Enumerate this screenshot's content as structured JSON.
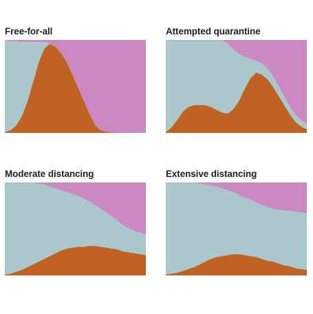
{
  "colors": {
    "infected": "#bf6323",
    "healthy": "#aac8cc",
    "recovered": "#cc88c0"
  },
  "chart_data": [
    {
      "type": "area",
      "title": "Free-for-all",
      "ylim": [
        0,
        1
      ],
      "x": [
        0,
        4,
        8,
        12,
        16,
        20,
        24,
        28,
        32,
        36,
        40,
        44,
        48,
        52,
        56,
        60,
        64,
        68,
        72,
        76,
        80,
        84,
        88,
        92,
        96,
        100
      ],
      "series": [
        {
          "values": [
            0.01,
            0.03,
            0.08,
            0.18,
            0.34,
            0.55,
            0.76,
            0.91,
            0.96,
            0.93,
            0.86,
            0.76,
            0.63,
            0.49,
            0.35,
            0.21,
            0.09,
            0.03,
            0.015,
            0.01,
            0.005,
            0.004,
            0.003,
            0.002,
            0.002,
            0.001
          ]
        },
        {
          "values": [
            0.99,
            0.96,
            0.91,
            0.8,
            0.64,
            0.43,
            0.22,
            0.07,
            0.01,
            0.003,
            0.002,
            0.002,
            0.001,
            0.001,
            0.001,
            0.001,
            0.001,
            0.001,
            0.001,
            0.001,
            0.001,
            0.001,
            0.001,
            0.001,
            0.001,
            0.001
          ]
        },
        {
          "values": [
            0.0,
            0.01,
            0.01,
            0.02,
            0.02,
            0.02,
            0.02,
            0.02,
            0.03,
            0.067,
            0.138,
            0.238,
            0.369,
            0.509,
            0.649,
            0.789,
            0.909,
            0.969,
            0.984,
            0.989,
            0.994,
            0.995,
            0.996,
            0.997,
            0.997,
            0.998
          ]
        }
      ]
    },
    {
      "type": "area",
      "title": "Attempted quarantine",
      "ylim": [
        0,
        1
      ],
      "x": [
        0,
        4,
        8,
        12,
        16,
        20,
        24,
        28,
        32,
        36,
        40,
        44,
        48,
        52,
        56,
        60,
        64,
        68,
        72,
        76,
        80,
        84,
        88,
        92,
        96,
        100
      ],
      "series": [
        {
          "values": [
            0.01,
            0.06,
            0.14,
            0.23,
            0.28,
            0.3,
            0.3,
            0.3,
            0.28,
            0.25,
            0.22,
            0.21,
            0.26,
            0.35,
            0.48,
            0.59,
            0.65,
            0.63,
            0.58,
            0.5,
            0.4,
            0.3,
            0.2,
            0.12,
            0.07,
            0.04
          ]
        },
        {
          "values": [
            0.99,
            0.94,
            0.86,
            0.77,
            0.72,
            0.7,
            0.7,
            0.7,
            0.72,
            0.75,
            0.78,
            0.75,
            0.64,
            0.5,
            0.34,
            0.21,
            0.13,
            0.12,
            0.12,
            0.12,
            0.11,
            0.1,
            0.09,
            0.08,
            0.07,
            0.06
          ]
        },
        {
          "values": [
            0.0,
            0.0,
            0.0,
            0.0,
            0.0,
            0.0,
            0.0,
            0.0,
            0.0,
            0.0,
            0.0,
            0.04,
            0.1,
            0.15,
            0.18,
            0.2,
            0.22,
            0.25,
            0.3,
            0.38,
            0.49,
            0.6,
            0.71,
            0.8,
            0.86,
            0.9
          ]
        }
      ]
    },
    {
      "type": "area",
      "title": "Moderate distancing",
      "ylim": [
        0,
        1
      ],
      "x": [
        0,
        4,
        8,
        12,
        16,
        20,
        24,
        28,
        32,
        36,
        40,
        44,
        48,
        52,
        56,
        60,
        64,
        68,
        72,
        76,
        80,
        84,
        88,
        92,
        96,
        100
      ],
      "series": [
        {
          "values": [
            0.01,
            0.02,
            0.04,
            0.06,
            0.09,
            0.12,
            0.15,
            0.18,
            0.21,
            0.24,
            0.27,
            0.29,
            0.3,
            0.31,
            0.31,
            0.32,
            0.32,
            0.31,
            0.3,
            0.29,
            0.28,
            0.26,
            0.25,
            0.24,
            0.23,
            0.22
          ]
        },
        {
          "values": [
            0.99,
            0.98,
            0.96,
            0.94,
            0.91,
            0.88,
            0.84,
            0.8,
            0.75,
            0.7,
            0.65,
            0.61,
            0.58,
            0.55,
            0.52,
            0.48,
            0.44,
            0.41,
            0.38,
            0.35,
            0.31,
            0.28,
            0.26,
            0.24,
            0.23,
            0.22
          ]
        },
        {
          "values": [
            0.0,
            0.0,
            0.0,
            0.0,
            0.0,
            0.0,
            0.01,
            0.02,
            0.04,
            0.06,
            0.08,
            0.1,
            0.12,
            0.14,
            0.17,
            0.2,
            0.24,
            0.28,
            0.32,
            0.36,
            0.41,
            0.46,
            0.49,
            0.52,
            0.54,
            0.56
          ]
        }
      ]
    },
    {
      "type": "area",
      "title": "Extensive distancing",
      "ylim": [
        0,
        1
      ],
      "x": [
        0,
        4,
        8,
        12,
        16,
        20,
        24,
        28,
        32,
        36,
        40,
        44,
        48,
        52,
        56,
        60,
        64,
        68,
        72,
        76,
        80,
        84,
        88,
        92,
        96,
        100
      ],
      "series": [
        {
          "values": [
            0.01,
            0.02,
            0.03,
            0.05,
            0.07,
            0.09,
            0.12,
            0.15,
            0.18,
            0.2,
            0.21,
            0.22,
            0.23,
            0.23,
            0.22,
            0.21,
            0.2,
            0.18,
            0.16,
            0.15,
            0.13,
            0.11,
            0.1,
            0.08,
            0.07,
            0.06
          ]
        },
        {
          "values": [
            0.99,
            0.98,
            0.97,
            0.95,
            0.93,
            0.91,
            0.87,
            0.83,
            0.79,
            0.76,
            0.73,
            0.7,
            0.67,
            0.64,
            0.62,
            0.61,
            0.59,
            0.58,
            0.58,
            0.57,
            0.58,
            0.59,
            0.6,
            0.61,
            0.61,
            0.61
          ]
        },
        {
          "values": [
            0.0,
            0.0,
            0.0,
            0.0,
            0.0,
            0.0,
            0.01,
            0.02,
            0.03,
            0.04,
            0.06,
            0.08,
            0.1,
            0.13,
            0.16,
            0.18,
            0.21,
            0.24,
            0.26,
            0.28,
            0.29,
            0.3,
            0.3,
            0.31,
            0.32,
            0.33
          ]
        }
      ]
    }
  ]
}
